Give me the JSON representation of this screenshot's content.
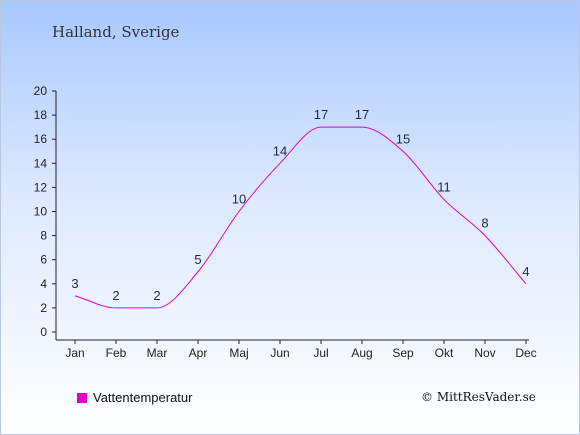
{
  "title": "Halland, Sverige",
  "legend": {
    "label": "Vattentemperatur",
    "color": "#e000c8"
  },
  "copyright": "© MittResVader.se",
  "chart_data": {
    "type": "line",
    "categories": [
      "Jan",
      "Feb",
      "Mar",
      "Apr",
      "Maj",
      "Jun",
      "Jul",
      "Aug",
      "Sep",
      "Okt",
      "Nov",
      "Dec"
    ],
    "series": [
      {
        "name": "Vattentemperatur",
        "values": [
          3,
          2,
          2,
          5,
          10,
          14,
          17,
          17,
          15,
          11,
          8,
          4
        ],
        "color": "#e000c8"
      }
    ],
    "ylim": [
      0,
      20
    ],
    "yticks": [
      0,
      2,
      4,
      6,
      8,
      10,
      12,
      14,
      16,
      18,
      20
    ],
    "grid": false,
    "legend_position": "bottom-left"
  }
}
